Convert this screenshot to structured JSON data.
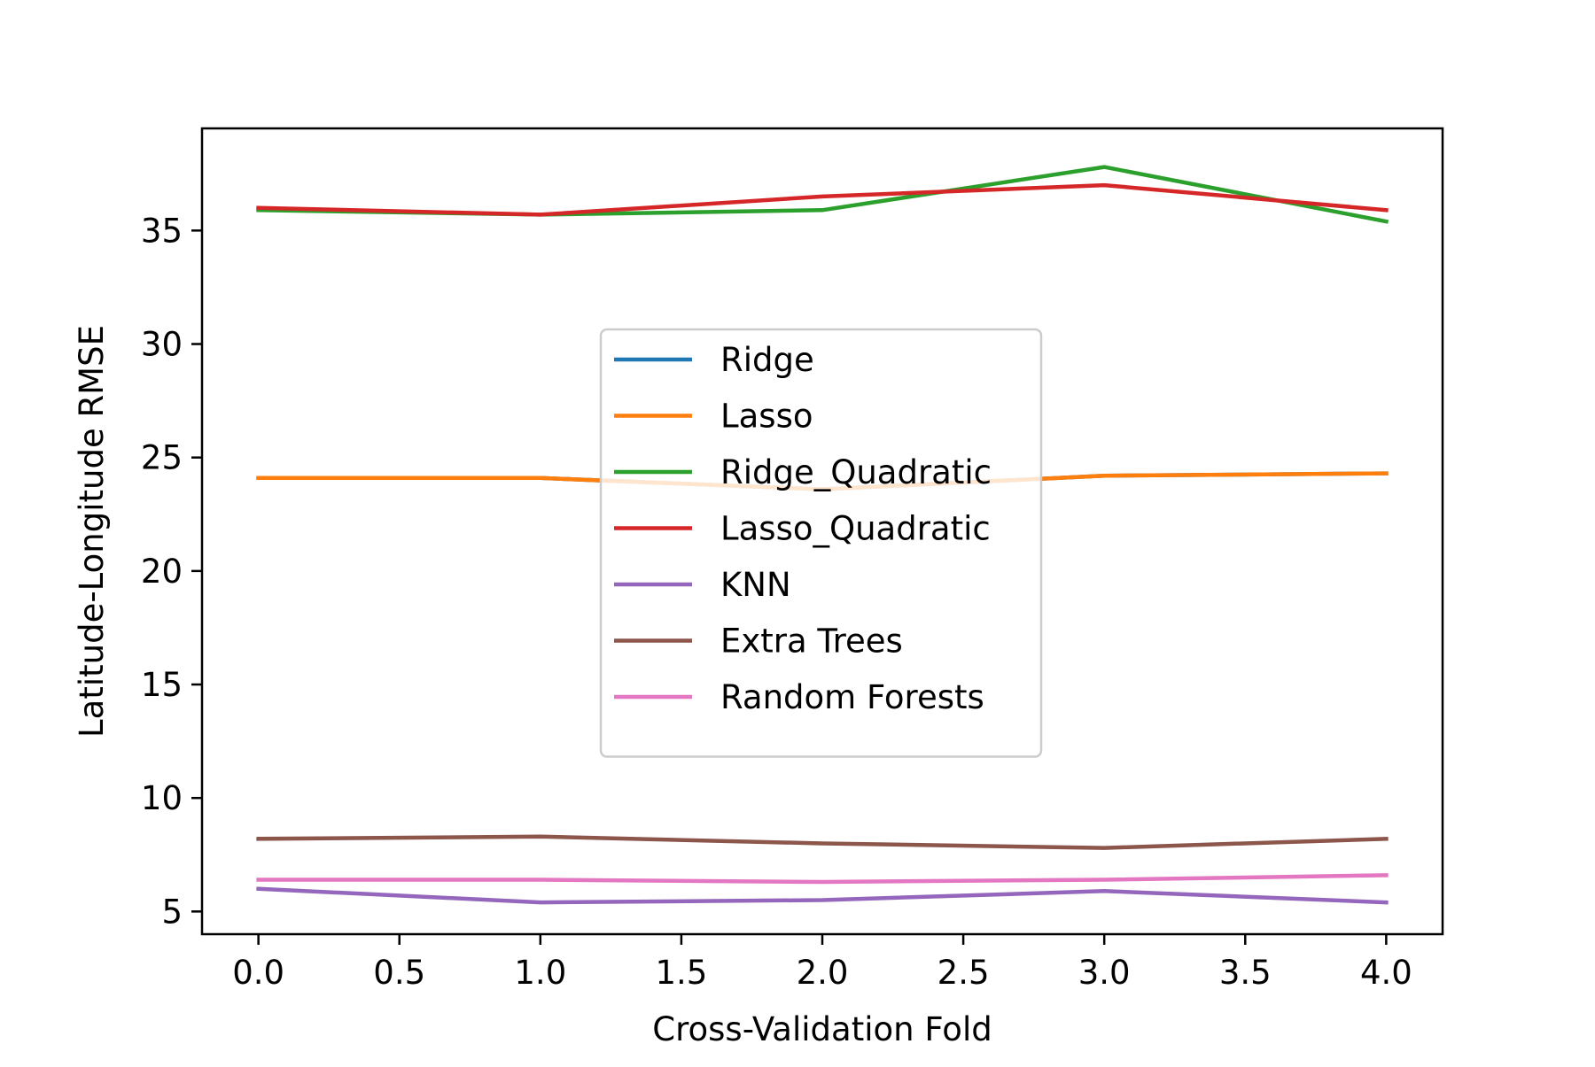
{
  "chart_data": {
    "type": "line",
    "xlabel": "Cross-Validation Fold",
    "ylabel": "Latitude-Longitude RMSE",
    "xlim": [
      -0.2,
      4.2
    ],
    "ylim": [
      4.0,
      39.5
    ],
    "xticks": [
      0.0,
      0.5,
      1.0,
      1.5,
      2.0,
      2.5,
      3.0,
      3.5,
      4.0
    ],
    "xtick_labels": [
      "0.0",
      "0.5",
      "1.0",
      "1.5",
      "2.0",
      "2.5",
      "3.0",
      "3.5",
      "4.0"
    ],
    "yticks": [
      5,
      10,
      15,
      20,
      25,
      30,
      35
    ],
    "ytick_labels": [
      "5",
      "10",
      "15",
      "20",
      "25",
      "30",
      "35"
    ],
    "grid": false,
    "legend_position": "center",
    "x": [
      0,
      1,
      2,
      3,
      4
    ],
    "series": [
      {
        "name": "Ridge",
        "color": "#1f77b4",
        "values": [
          24.1,
          24.1,
          23.6,
          24.2,
          24.3
        ]
      },
      {
        "name": "Lasso",
        "color": "#ff7f0e",
        "values": [
          24.1,
          24.1,
          23.6,
          24.2,
          24.3
        ]
      },
      {
        "name": "Ridge_Quadratic",
        "color": "#2ca02c",
        "values": [
          35.9,
          35.7,
          35.9,
          37.8,
          35.4
        ]
      },
      {
        "name": "Lasso_Quadratic",
        "color": "#d62728",
        "values": [
          36.0,
          35.7,
          36.5,
          37.0,
          35.9
        ]
      },
      {
        "name": "KNN",
        "color": "#9467bd",
        "values": [
          6.0,
          5.4,
          5.5,
          5.9,
          5.4
        ]
      },
      {
        "name": "Extra Trees",
        "color": "#8c564b",
        "values": [
          8.2,
          8.3,
          8.0,
          7.8,
          8.2
        ]
      },
      {
        "name": "Random Forests",
        "color": "#e377c2",
        "values": [
          6.4,
          6.4,
          6.3,
          6.4,
          6.6
        ]
      }
    ]
  }
}
